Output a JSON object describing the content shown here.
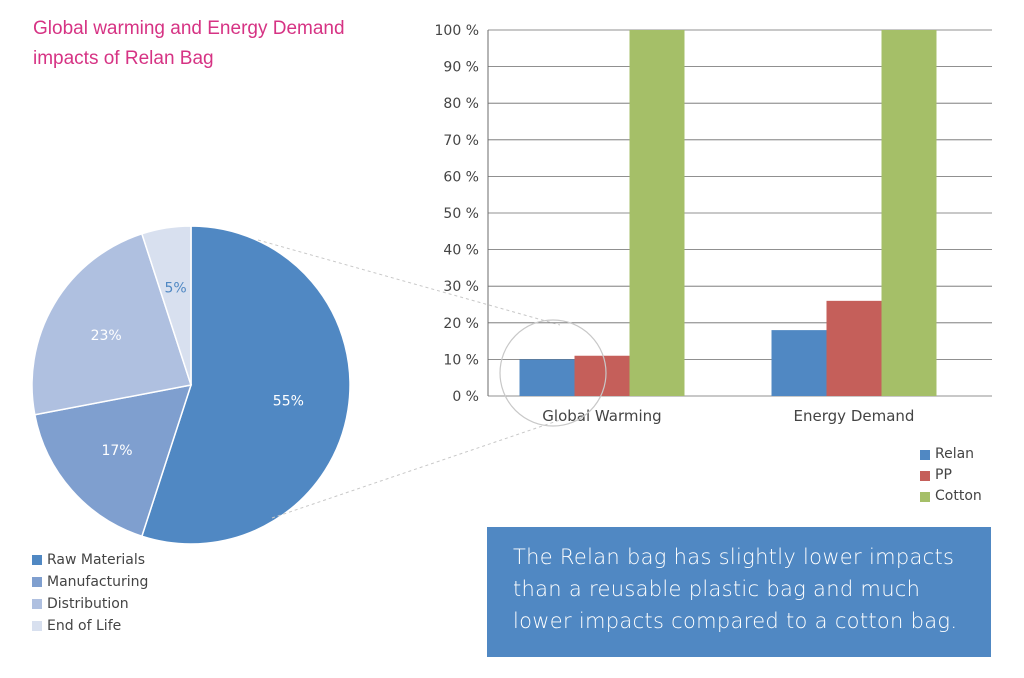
{
  "title": "Global warming and Energy Demand impacts of Relan Bag",
  "callout": "The Relan bag has slightly lower impacts than a reusable plastic bag and much lower impacts compared to a cotton bag.",
  "chart_data": [
    {
      "type": "pie",
      "labels": [
        "Raw Materials",
        "Manufacturing",
        "Distribution",
        "End of Life"
      ],
      "values": [
        55,
        17,
        23,
        5
      ],
      "value_labels": [
        "55%",
        "17%",
        "23%",
        "5%"
      ],
      "colors": [
        "#5088c3",
        "#7f9fcf",
        "#afc0e0",
        "#d8e0ef"
      ],
      "legend_position": "bottom-left"
    },
    {
      "type": "bar",
      "categories": [
        "Global Warming",
        "Energy Demand"
      ],
      "series": [
        {
          "name": "Relan",
          "values": [
            10,
            18
          ],
          "color": "#5088c3"
        },
        {
          "name": "PP",
          "values": [
            11,
            26
          ],
          "color": "#c55f5a"
        },
        {
          "name": "Cotton",
          "values": [
            100,
            100
          ],
          "color": "#a5bf68"
        }
      ],
      "yticks": [
        "0 %",
        "10 %",
        "20 %",
        "30 %",
        "40 %",
        "50 %",
        "60 %",
        "70 %",
        "80 %",
        "90 %",
        "100 %"
      ],
      "ylim": [
        0,
        100
      ],
      "grid": true,
      "legend_position": "bottom-right"
    }
  ]
}
